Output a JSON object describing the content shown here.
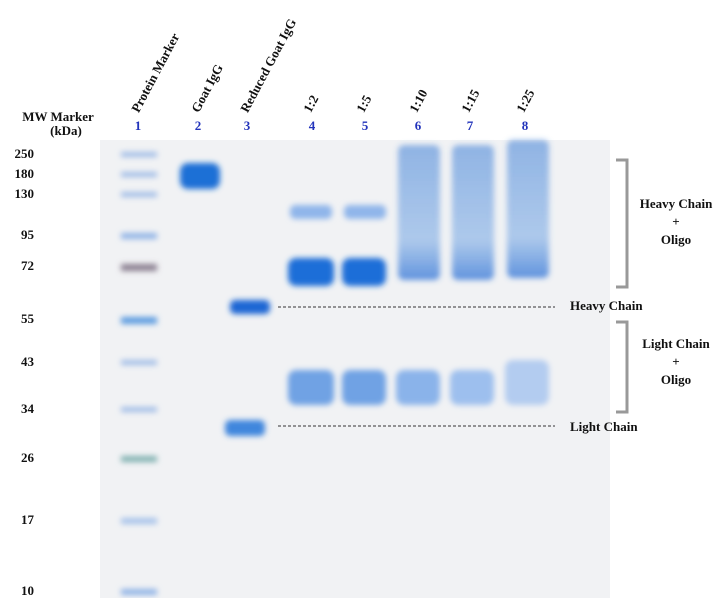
{
  "header": {
    "mw_title": "MW Marker",
    "mw_unit": "(kDa)"
  },
  "mw_markers": [
    250,
    180,
    130,
    95,
    72,
    55,
    43,
    34,
    26,
    17,
    10
  ],
  "lanes": [
    {
      "number": 1,
      "name": "Protein Marker"
    },
    {
      "number": 2,
      "name": "Goat IgG"
    },
    {
      "number": 3,
      "name": "Reduced Goat IgG"
    },
    {
      "number": 4,
      "ratio": "1:2"
    },
    {
      "number": 5,
      "ratio": "1:5"
    },
    {
      "number": 6,
      "ratio": "1:10"
    },
    {
      "number": 7,
      "ratio": "1:15"
    },
    {
      "number": 8,
      "ratio": "1:25"
    }
  ],
  "annotations": {
    "heavy_chain_oligo": [
      "Heavy Chain",
      "+",
      "Oligo"
    ],
    "heavy_chain": "Heavy Chain",
    "light_chain_oligo": [
      "Light Chain",
      "+",
      "Oligo"
    ],
    "light_chain": "Light Chain"
  }
}
